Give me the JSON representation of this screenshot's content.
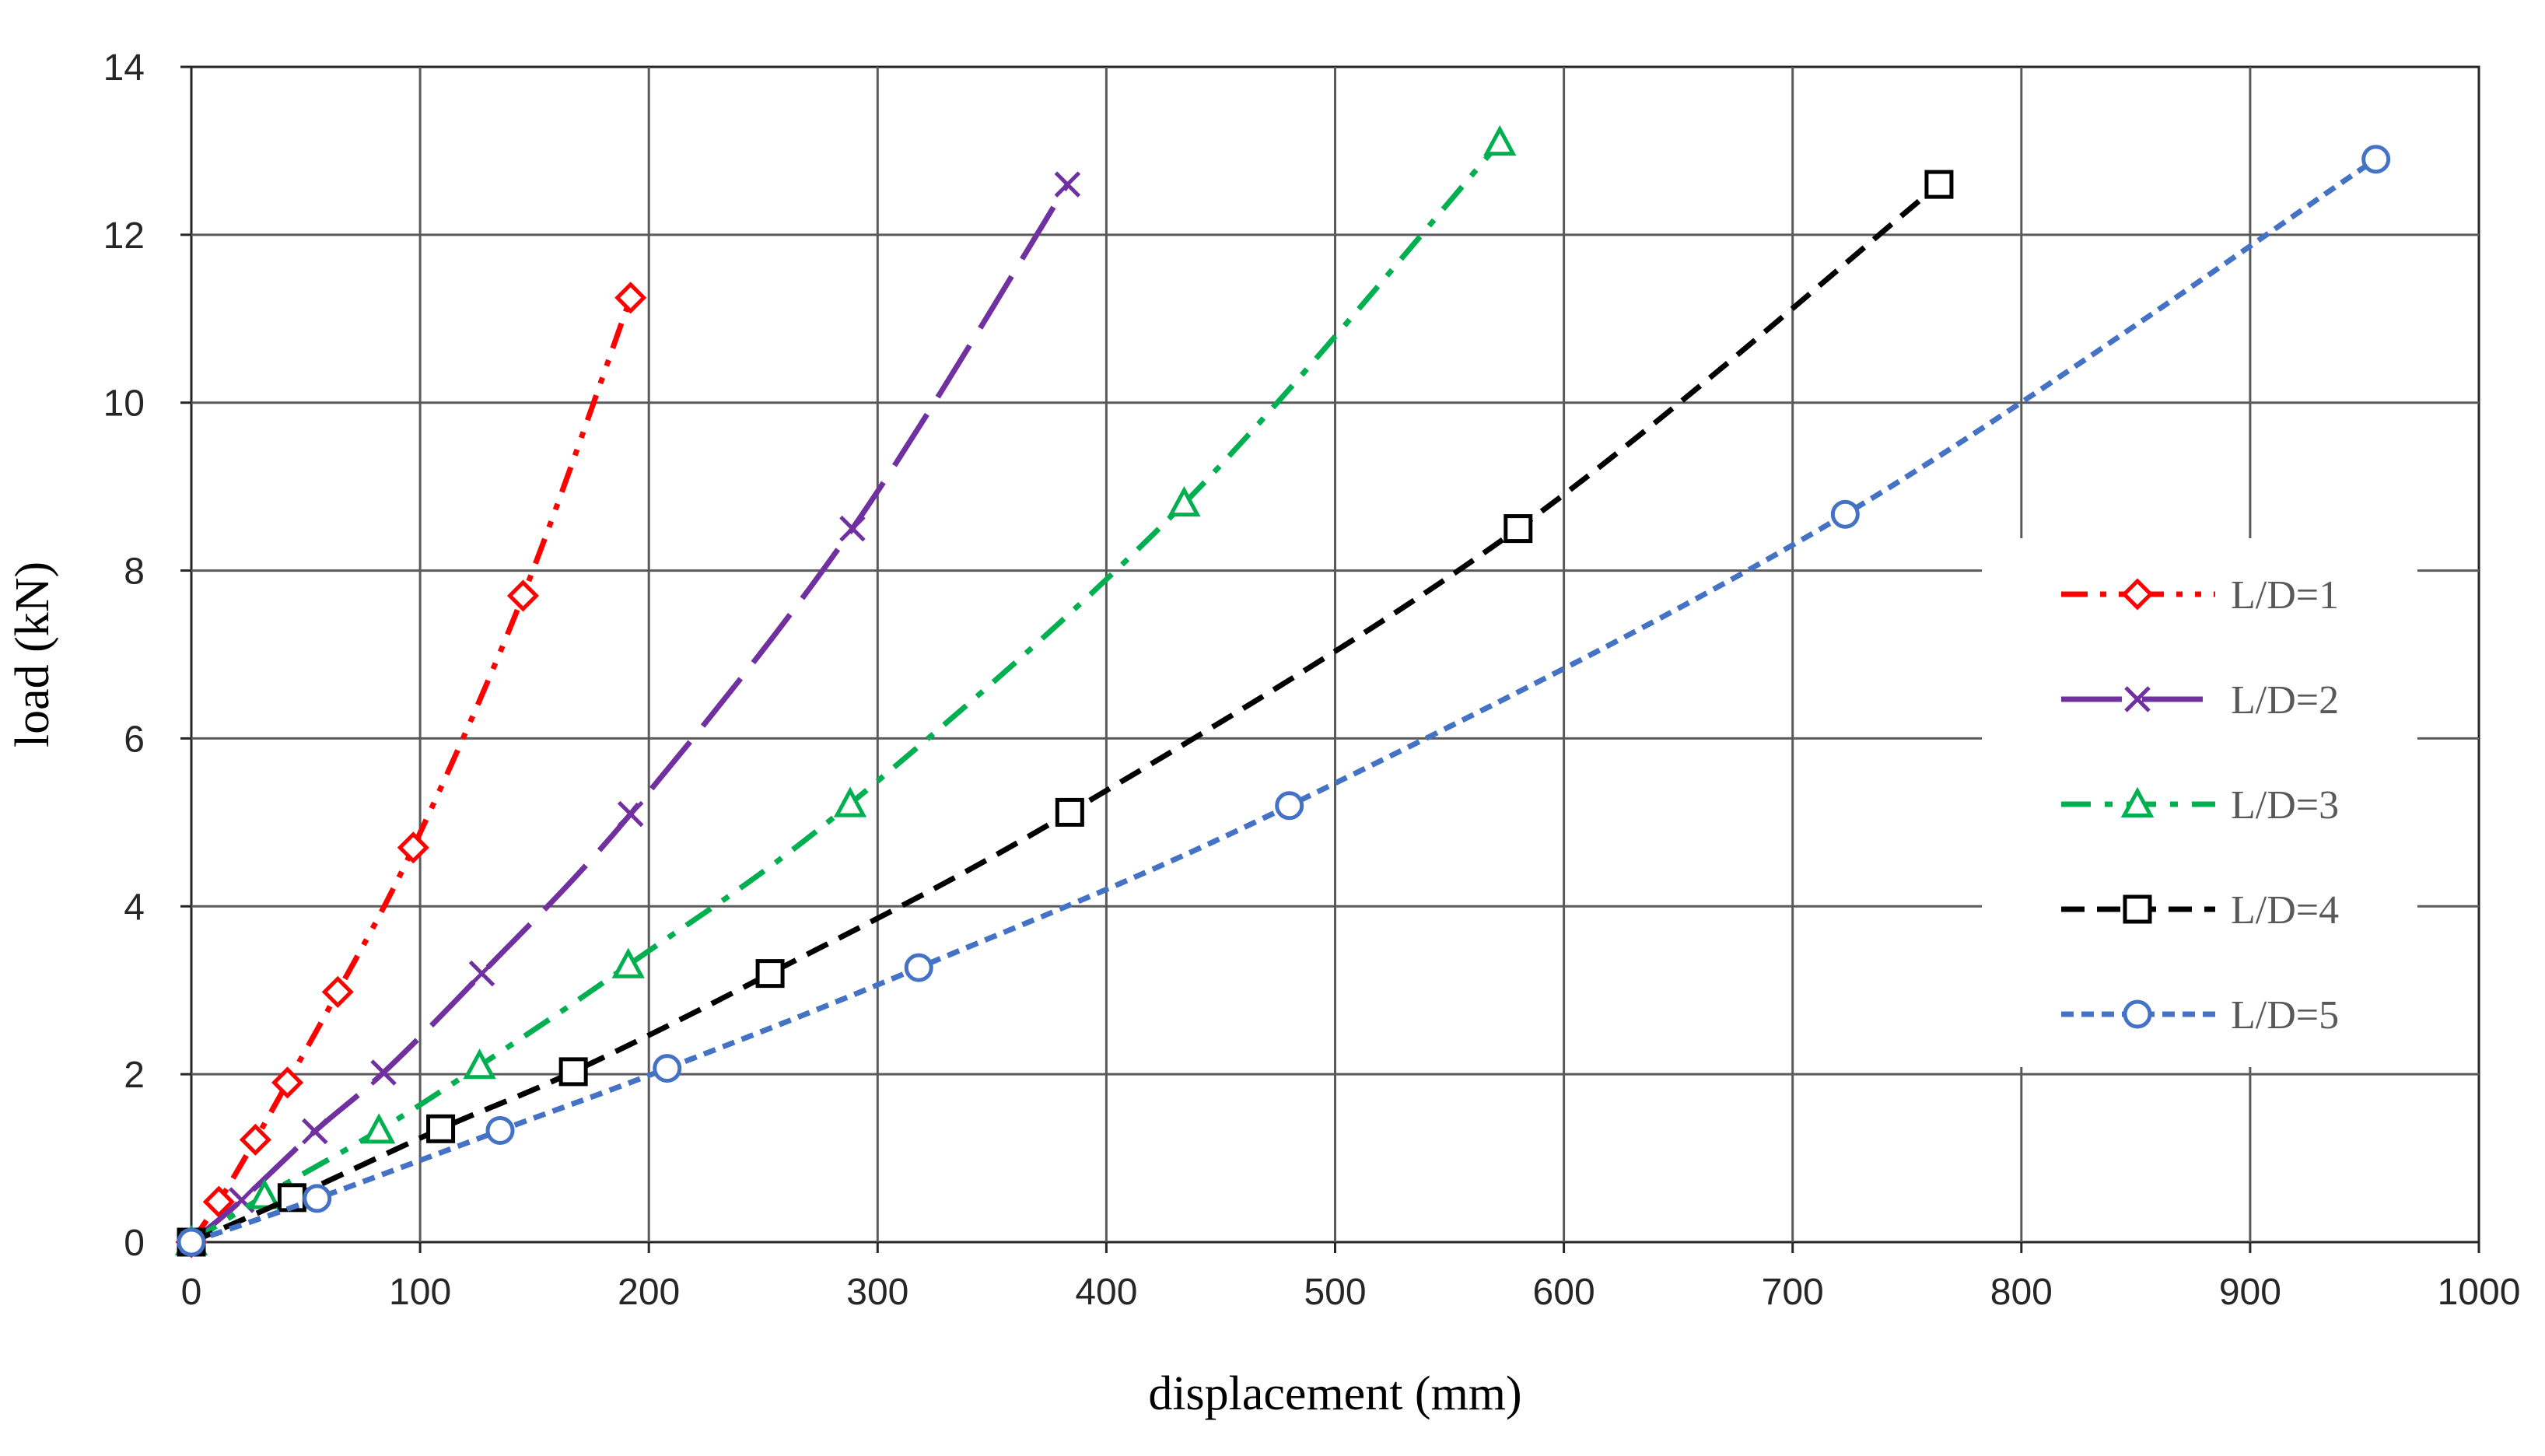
{
  "chart_data": {
    "type": "line",
    "title": "",
    "xlabel": "displacement (mm)",
    "ylabel": "load (kN)",
    "xlim": [
      0,
      1000
    ],
    "ylim": [
      0,
      14
    ],
    "xticks": [
      0,
      100,
      200,
      300,
      400,
      500,
      600,
      700,
      800,
      900,
      1000
    ],
    "yticks": [
      0,
      2,
      4,
      6,
      8,
      10,
      12,
      14
    ],
    "grid": true,
    "legend_position": "right",
    "series": [
      {
        "name": "L/D=1",
        "color": "#ff0000",
        "marker": "diamond",
        "dash": "dash-dot-dot",
        "x": [
          0,
          12,
          28,
          42,
          64,
          97,
          145,
          192
        ],
        "y": [
          0,
          0.48,
          1.22,
          1.9,
          2.98,
          4.7,
          7.7,
          11.25
        ]
      },
      {
        "name": "L/D=2",
        "color": "#7030a0",
        "marker": "x",
        "dash": "long-dash",
        "x": [
          0,
          22,
          54,
          84,
          127,
          192,
          289,
          383
        ],
        "y": [
          0,
          0.5,
          1.32,
          2.02,
          3.2,
          5.1,
          8.5,
          12.6
        ]
      },
      {
        "name": "L/D=3",
        "color": "#00b050",
        "marker": "triangle",
        "dash": "dash-dot",
        "x": [
          0,
          32,
          82,
          126,
          191,
          288,
          434,
          572
        ],
        "y": [
          0,
          0.55,
          1.33,
          2.1,
          3.3,
          5.22,
          8.8,
          13.1
        ]
      },
      {
        "name": "L/D=4",
        "color": "#000000",
        "marker": "square",
        "dash": "dash",
        "x": [
          0,
          44,
          109,
          167,
          253,
          384,
          580,
          764
        ],
        "y": [
          0,
          0.53,
          1.35,
          2.03,
          3.2,
          5.12,
          8.5,
          12.6
        ]
      },
      {
        "name": "L/D=5",
        "color": "#4472c4",
        "marker": "circle",
        "dash": "short-dash",
        "x": [
          0,
          55,
          135,
          208,
          318,
          480,
          723,
          955
        ],
        "y": [
          0,
          0.52,
          1.33,
          2.07,
          3.27,
          5.2,
          8.67,
          12.9
        ]
      }
    ]
  }
}
